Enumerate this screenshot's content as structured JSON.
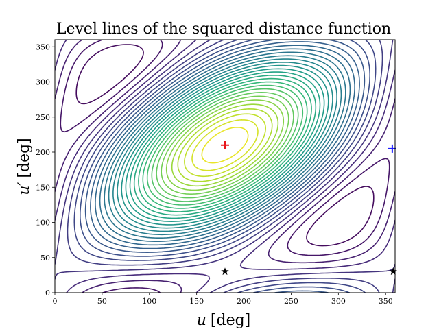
{
  "chart_data": {
    "type": "contour",
    "title": "Level lines of the squared distance function",
    "xlabel_var": "u",
    "xlabel_unit": "[deg]",
    "ylabel_var": "u′",
    "ylabel_unit": "[deg]",
    "xlim": [
      0,
      360
    ],
    "ylim": [
      0,
      360
    ],
    "xticks": [
      0,
      50,
      100,
      150,
      200,
      250,
      300,
      350
    ],
    "yticks": [
      0,
      50,
      100,
      150,
      200,
      250,
      300,
      350
    ],
    "colormap": "viridis",
    "grid": false,
    "markers": [
      {
        "name": "maximum",
        "symbol": "plus",
        "color": "#e8161b",
        "x": 180,
        "y": 210
      },
      {
        "name": "saddle",
        "symbol": "plus",
        "color": "#1a1aff",
        "x": 357,
        "y": 205
      },
      {
        "name": "minimum-1",
        "symbol": "star",
        "color": "#000000",
        "x": 180,
        "y": 30
      },
      {
        "name": "minimum-2",
        "symbol": "star",
        "color": "#000000",
        "x": 358,
        "y": 30
      }
    ]
  }
}
